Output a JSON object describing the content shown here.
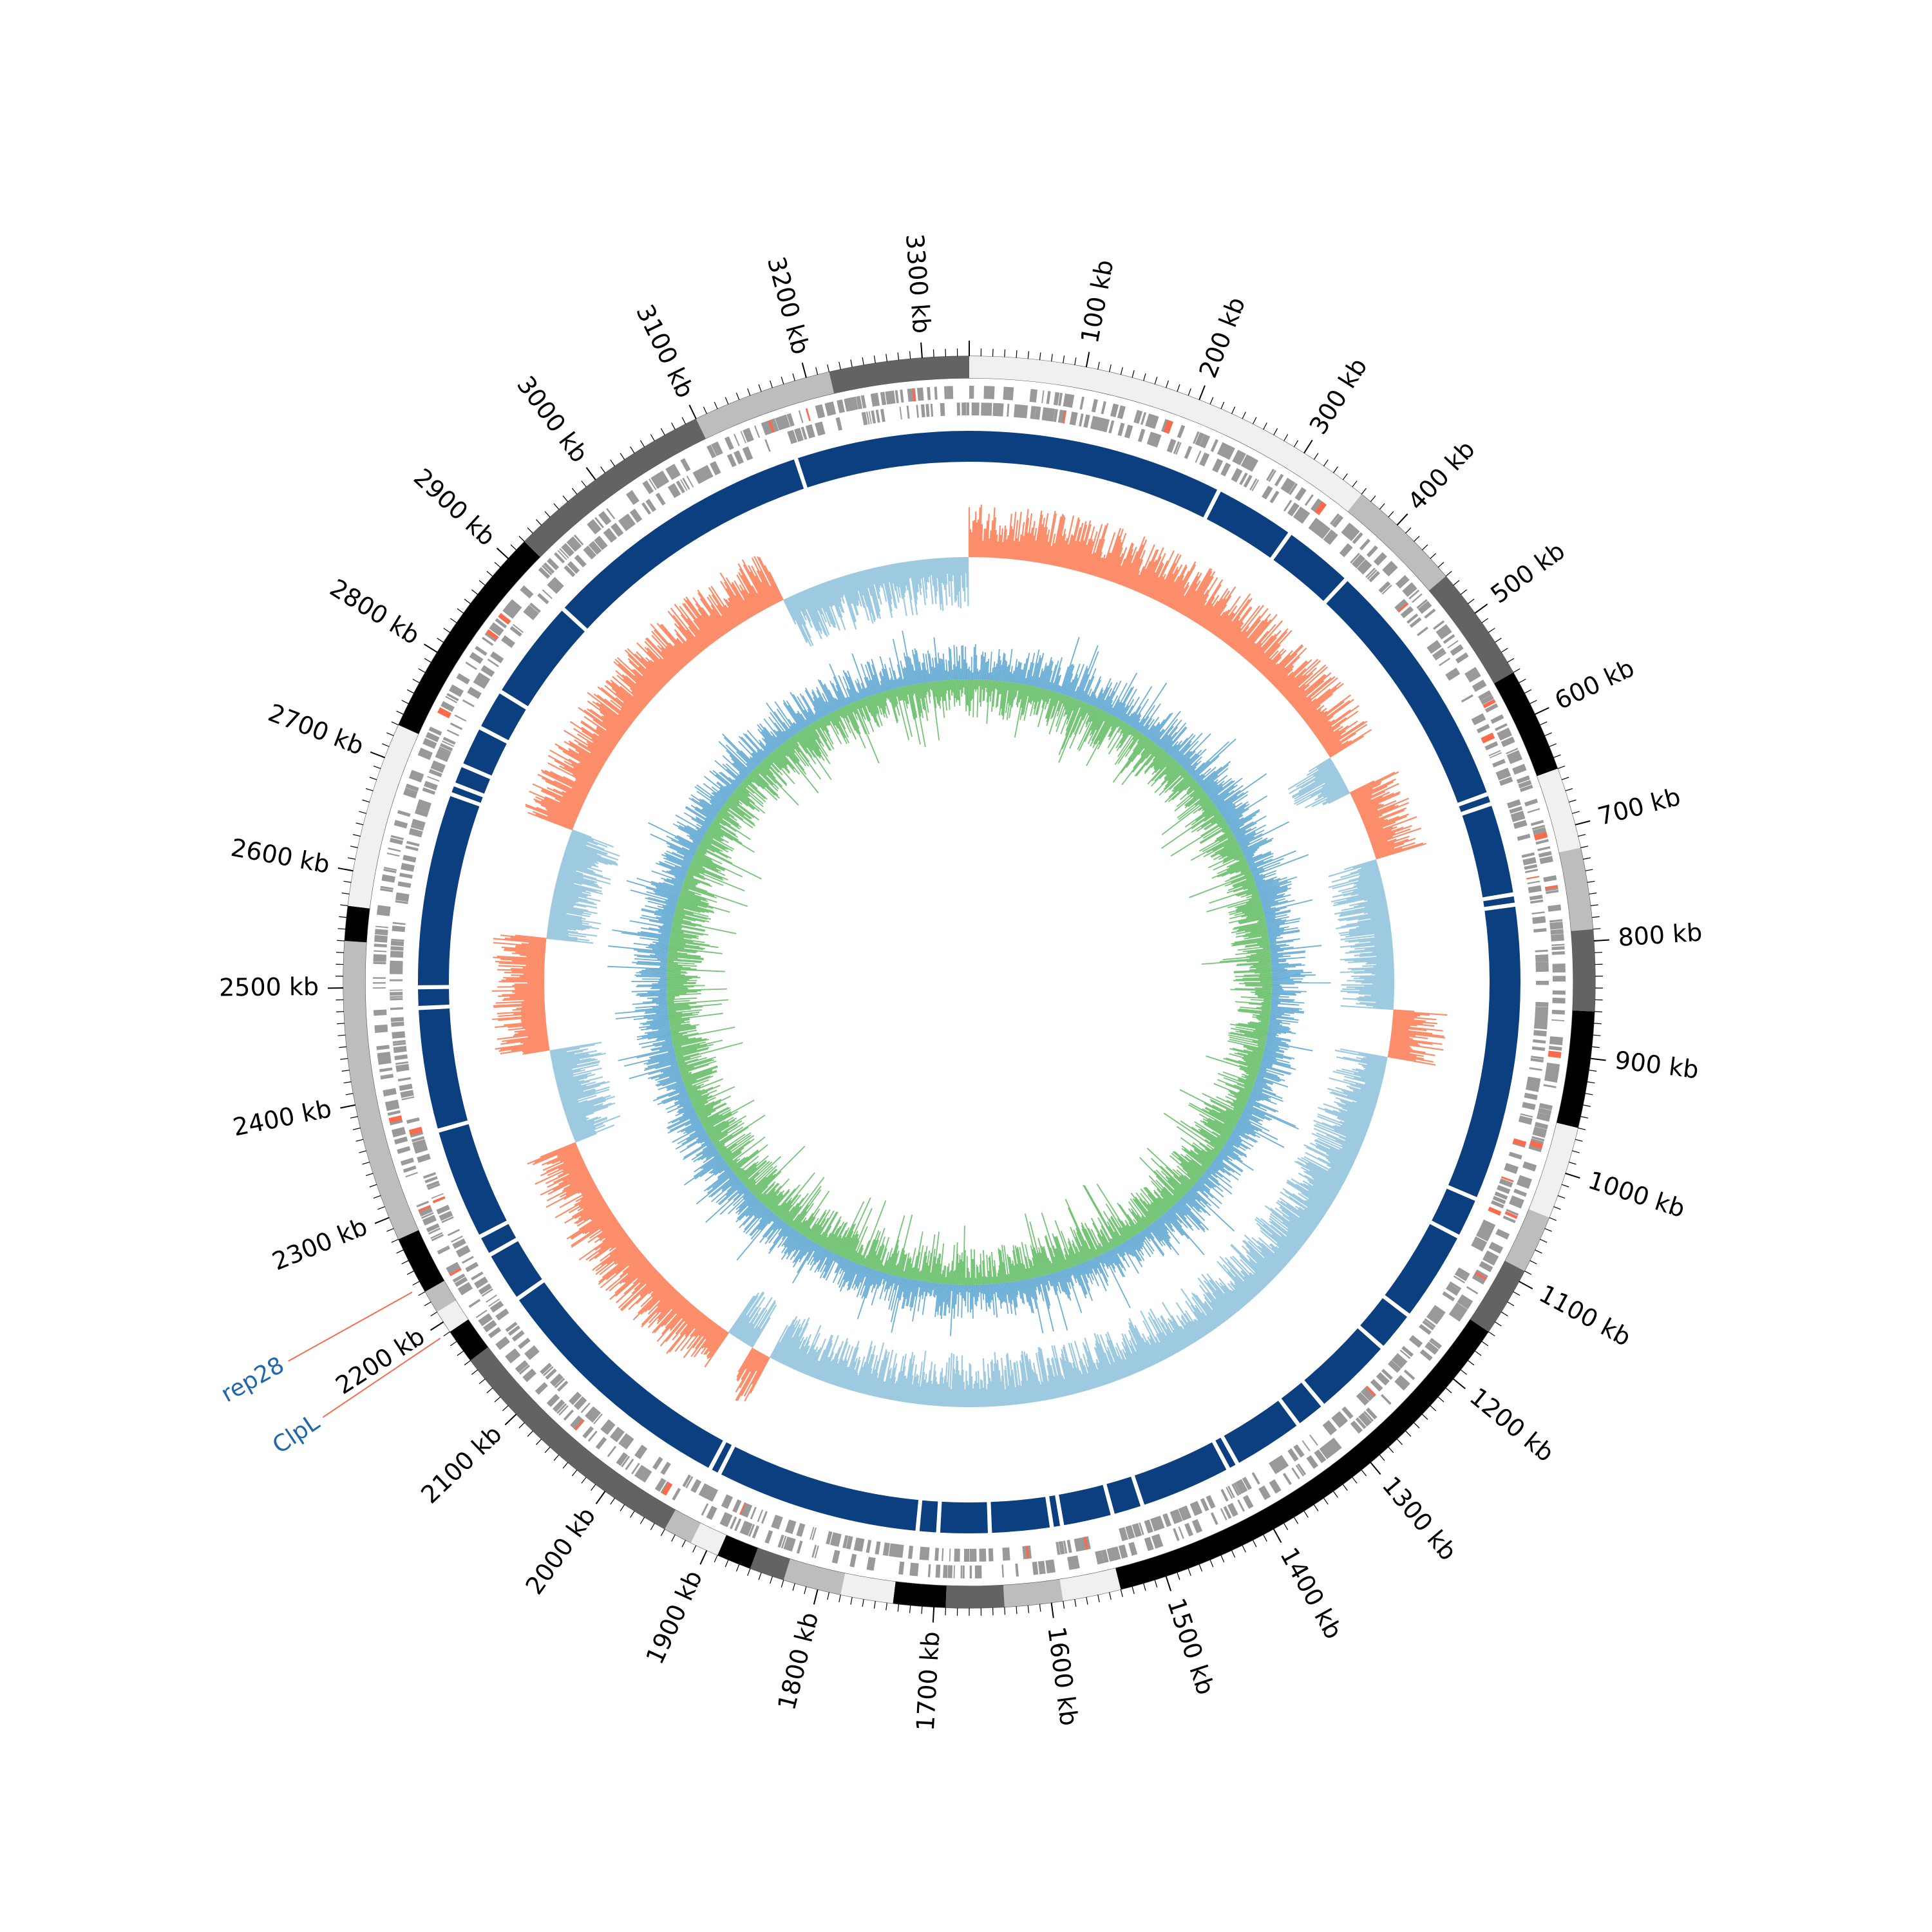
{
  "chart_data": {
    "type": "circular-genome-map",
    "genome_length_kb": 3340,
    "tick_labels": [
      "100 kb",
      "200 kb",
      "300 kb",
      "400 kb",
      "500 kb",
      "600 kb",
      "700 kb",
      "800 kb",
      "900 kb",
      "1000 kb",
      "1100 kb",
      "1200 kb",
      "1300 kb",
      "1400 kb",
      "1500 kb",
      "1600 kb",
      "1700 kb",
      "1800 kb",
      "1900 kb",
      "2000 kb",
      "2100 kb",
      "2200 kb",
      "2300 kb",
      "2400 kb",
      "2500 kb",
      "2600 kb",
      "2700 kb",
      "2800 kb",
      "2900 kb",
      "3000 kb",
      "3100 kb",
      "3200 kb",
      "3300 kb"
    ],
    "tick_positions_kb": [
      100,
      200,
      300,
      400,
      500,
      600,
      700,
      800,
      900,
      1000,
      1100,
      1200,
      1300,
      1400,
      1500,
      1600,
      1700,
      1800,
      1900,
      2000,
      2100,
      2200,
      2300,
      2400,
      2500,
      2600,
      2700,
      2800,
      2900,
      3000,
      3100,
      3200,
      3300
    ],
    "outer_blocks": [
      {
        "start": 0,
        "end": 360,
        "shade": "#f0f0f0"
      },
      {
        "start": 360,
        "end": 460,
        "shade": "#bdbdbd"
      },
      {
        "start": 460,
        "end": 560,
        "shade": "#636363"
      },
      {
        "start": 560,
        "end": 650,
        "shade": "#000000"
      },
      {
        "start": 650,
        "end": 720,
        "shade": "#f0f0f0"
      },
      {
        "start": 720,
        "end": 790,
        "shade": "#bdbdbd"
      },
      {
        "start": 790,
        "end": 860,
        "shade": "#636363"
      },
      {
        "start": 860,
        "end": 960,
        "shade": "#000000"
      },
      {
        "start": 960,
        "end": 1040,
        "shade": "#f0f0f0"
      },
      {
        "start": 1040,
        "end": 1090,
        "shade": "#bdbdbd"
      },
      {
        "start": 1090,
        "end": 1150,
        "shade": "#636363"
      },
      {
        "start": 1150,
        "end": 1540,
        "shade": "#000000"
      },
      {
        "start": 1540,
        "end": 1590,
        "shade": "#f0f0f0"
      },
      {
        "start": 1590,
        "end": 1640,
        "shade": "#bdbdbd"
      },
      {
        "start": 1640,
        "end": 1690,
        "shade": "#636363"
      },
      {
        "start": 1690,
        "end": 1735,
        "shade": "#000000"
      },
      {
        "start": 1735,
        "end": 1780,
        "shade": "#f0f0f0"
      },
      {
        "start": 1780,
        "end": 1830,
        "shade": "#bdbdbd"
      },
      {
        "start": 1830,
        "end": 1860,
        "shade": "#636363"
      },
      {
        "start": 1860,
        "end": 1890,
        "shade": "#000000"
      },
      {
        "start": 1890,
        "end": 1915,
        "shade": "#f0f0f0"
      },
      {
        "start": 1915,
        "end": 1940,
        "shade": "#bdbdbd"
      },
      {
        "start": 1940,
        "end": 2160,
        "shade": "#636363"
      },
      {
        "start": 2160,
        "end": 2190,
        "shade": "#000000"
      },
      {
        "start": 2190,
        "end": 2210,
        "shade": "#f0f0f0"
      },
      {
        "start": 2210,
        "end": 2230,
        "shade": "#bdbdbd"
      },
      {
        "start": 2230,
        "end": 2280,
        "shade": "#000000"
      },
      {
        "start": 2280,
        "end": 2540,
        "shade": "#bdbdbd"
      },
      {
        "start": 2540,
        "end": 2570,
        "shade": "#000000"
      },
      {
        "start": 2570,
        "end": 2730,
        "shade": "#f0f0f0"
      },
      {
        "start": 2730,
        "end": 2920,
        "shade": "#000000"
      },
      {
        "start": 2920,
        "end": 3100,
        "shade": "#636363"
      },
      {
        "start": 3100,
        "end": 3220,
        "shade": "#bdbdbd"
      },
      {
        "start": 3220,
        "end": 3340,
        "shade": "#636363"
      }
    ],
    "blue_ring_gaps_kb": [
      250,
      330,
      400,
      650,
      660,
      750,
      760,
      1050,
      1090,
      1180,
      1220,
      1300,
      1330,
      1400,
      1410,
      1500,
      1530,
      1580,
      1590,
      1650,
      1700,
      1720,
      1920,
      1930,
      2180,
      2230,
      2250,
      2360,
      2480,
      2500,
      2690,
      2700,
      2720,
      2760,
      2800,
      2900,
      3170
    ],
    "skew_ring_segments": [
      {
        "start": 0,
        "end": 540,
        "sign": "negative"
      },
      {
        "start": 540,
        "end": 590,
        "sign": "positive"
      },
      {
        "start": 590,
        "end": 680,
        "sign": "negative"
      },
      {
        "start": 680,
        "end": 870,
        "sign": "positive"
      },
      {
        "start": 870,
        "end": 930,
        "sign": "negative"
      },
      {
        "start": 930,
        "end": 1930,
        "sign": "positive"
      },
      {
        "start": 1930,
        "end": 1955,
        "sign": "negative"
      },
      {
        "start": 1955,
        "end": 1990,
        "sign": "positive"
      },
      {
        "start": 1990,
        "end": 2300,
        "sign": "negative"
      },
      {
        "start": 2300,
        "end": 2420,
        "sign": "positive"
      },
      {
        "start": 2420,
        "end": 2560,
        "sign": "negative"
      },
      {
        "start": 2560,
        "end": 2700,
        "sign": "positive"
      },
      {
        "start": 2700,
        "end": 3100,
        "sign": "negative"
      },
      {
        "start": 3100,
        "end": 3340,
        "sign": "positive"
      }
    ],
    "annotations": [
      {
        "label": "rep28",
        "position_kb": 2235
      },
      {
        "label": "ClpL",
        "position_kb": 2190
      }
    ],
    "colors": {
      "blue_ring": "#0b3f7f",
      "skew_positive": "#9ecae1",
      "skew_negative": "#fc8d6a",
      "gc_outer": "#6baed6",
      "gc_inner": "#74c476",
      "feature_gray": "#999999",
      "annotation_text": "#2166ac",
      "annotation_line": "#fb6a4a"
    }
  }
}
